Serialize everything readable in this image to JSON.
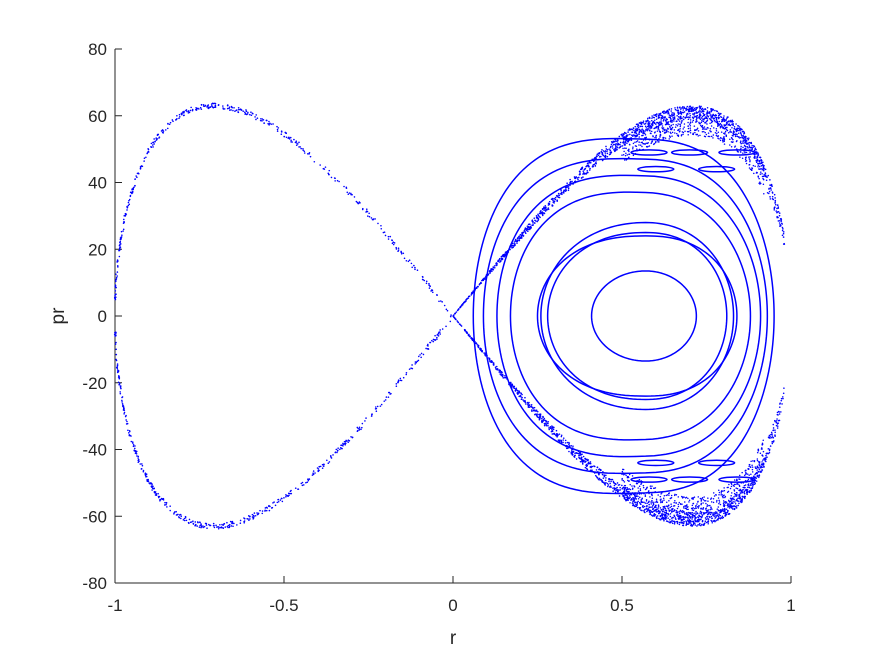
{
  "chart_data": {
    "type": "scatter",
    "title": "",
    "xlabel": "r",
    "ylabel": "pr",
    "xlim": [
      -1,
      1
    ],
    "ylim": [
      -80,
      80
    ],
    "xticks": [
      -1,
      -0.5,
      0,
      0.5,
      1
    ],
    "xtick_labels": [
      "-1",
      "-0.5",
      "0",
      "0.5",
      "1"
    ],
    "yticks": [
      -80,
      -60,
      -40,
      -20,
      0,
      20,
      40,
      60,
      80
    ],
    "ytick_labels": [
      "-80",
      "-60",
      "-40",
      "-20",
      "0",
      "20",
      "40",
      "60",
      "80"
    ],
    "grid": false,
    "marker_color": "#0000ff",
    "separatrix_left": {
      "x_range": [
        -1,
        0
      ],
      "pr_peak": 63,
      "peak_r": -0.7,
      "style": "sparse dotted points"
    },
    "right_lobe": {
      "outer_boundary_x_range": [
        0,
        0.98
      ],
      "outer_pr_peak": 63,
      "center_r": 0.57,
      "center_pr": 0,
      "closed_orbits": [
        {
          "r_min": 0.41,
          "r_max": 0.72,
          "pr_max": 13.5
        },
        {
          "r_min": 0.26,
          "r_max": 0.83,
          "pr_max": 28
        },
        {
          "r_min": 0.28,
          "r_max": 0.81,
          "pr_max": 25
        },
        {
          "r_min": 0.25,
          "r_max": 0.84,
          "pr_max": 24
        },
        {
          "r_min": 0.17,
          "r_max": 0.88,
          "pr_max": 37
        },
        {
          "r_min": 0.13,
          "r_max": 0.91,
          "pr_max": 42
        },
        {
          "r_min": 0.09,
          "r_max": 0.93,
          "pr_max": 47
        },
        {
          "r_min": 0.06,
          "r_max": 0.95,
          "pr_max": 53
        }
      ],
      "island_chains": [
        {
          "pr": 49,
          "r_values": [
            0.58,
            0.7,
            0.84
          ]
        },
        {
          "pr": 44,
          "r_values": [
            0.6,
            0.78
          ]
        },
        {
          "pr": -44,
          "r_values": [
            0.6,
            0.78
          ]
        },
        {
          "pr": -49,
          "r_values": [
            0.58,
            0.7,
            0.84
          ]
        }
      ]
    }
  }
}
